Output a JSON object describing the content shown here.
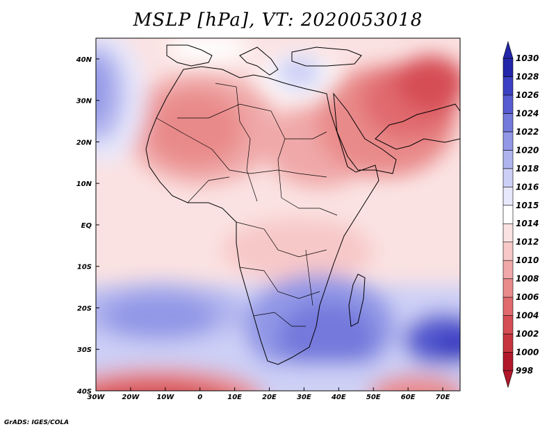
{
  "title": "MSLP [hPa], VT: 2020053018",
  "footer": "GrADS: IGES/COLA",
  "map": {
    "region": "Africa",
    "lon_range": [
      -30,
      75
    ],
    "lat_range": [
      -40,
      45
    ],
    "lon_ticks": [
      {
        "lon": -30,
        "label": "30W"
      },
      {
        "lon": -20,
        "label": "20W"
      },
      {
        "lon": -10,
        "label": "10W"
      },
      {
        "lon": 0,
        "label": "0"
      },
      {
        "lon": 10,
        "label": "10E"
      },
      {
        "lon": 20,
        "label": "20E"
      },
      {
        "lon": 30,
        "label": "30E"
      },
      {
        "lon": 40,
        "label": "40E"
      },
      {
        "lon": 50,
        "label": "50E"
      },
      {
        "lon": 60,
        "label": "60E"
      },
      {
        "lon": 70,
        "label": "70E"
      }
    ],
    "lat_ticks": [
      {
        "lat": 40,
        "label": "40N"
      },
      {
        "lat": 30,
        "label": "30N"
      },
      {
        "lat": 20,
        "label": "20N"
      },
      {
        "lat": 10,
        "label": "10N"
      },
      {
        "lat": 0,
        "label": "EQ"
      },
      {
        "lat": -10,
        "label": "10S"
      },
      {
        "lat": -20,
        "label": "20S"
      },
      {
        "lat": -30,
        "label": "30S"
      },
      {
        "lat": -40,
        "label": "40S"
      }
    ]
  },
  "colorbar": {
    "colors": [
      "#b2182b",
      "#c7353f",
      "#d64e55",
      "#e06a6e",
      "#e98a8a",
      "#f0a8a8",
      "#f7c8c8",
      "#fbe2e2",
      "#ffffff",
      "#e8e8fc",
      "#cdd0f6",
      "#b0b4ee",
      "#9297e6",
      "#7479dc",
      "#575cd0",
      "#3c40c2",
      "#2326a8"
    ],
    "labels": [
      "998",
      "1000",
      "1002",
      "1004",
      "1006",
      "1008",
      "1010",
      "1012",
      "1014",
      "1015",
      "1016",
      "1018",
      "1020",
      "1022",
      "1024",
      "1026",
      "1028",
      "1030"
    ]
  }
}
